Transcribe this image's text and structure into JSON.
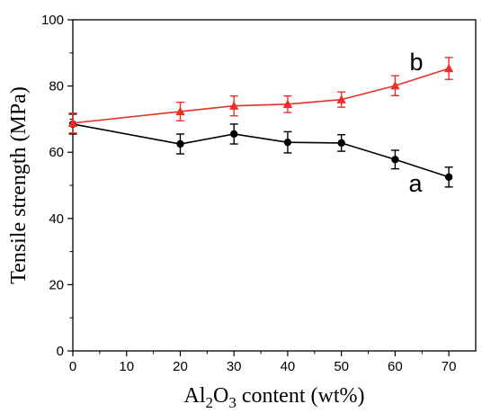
{
  "chart_data": {
    "type": "line",
    "title": "",
    "xlabel": {
      "parts": [
        {
          "text": "Al",
          "sub": false
        },
        {
          "text": "2",
          "sub": true
        },
        {
          "text": "O",
          "sub": false
        },
        {
          "text": "3",
          "sub": true
        },
        {
          "text": " content (wt%)",
          "sub": false
        }
      ]
    },
    "ylabel": "Tensile strength (MPa)",
    "xlim": [
      0,
      75
    ],
    "ylim": [
      0,
      100
    ],
    "xticks": [
      0,
      10,
      20,
      30,
      40,
      50,
      60,
      70
    ],
    "yticks": [
      0,
      20,
      40,
      60,
      80,
      100
    ],
    "x": [
      0,
      20,
      30,
      40,
      50,
      60,
      70
    ],
    "grid": false,
    "series": [
      {
        "name": "a",
        "color": "#000000",
        "marker": "circle",
        "values": [
          68.5,
          62.5,
          65.5,
          63.0,
          62.8,
          57.8,
          52.5
        ],
        "errors": [
          3.0,
          3.0,
          3.0,
          3.2,
          2.5,
          2.8,
          3.0
        ]
      },
      {
        "name": "b",
        "color": "#e8302a",
        "marker": "triangle",
        "values": [
          68.8,
          72.3,
          74.0,
          74.5,
          75.9,
          80.1,
          85.3
        ],
        "errors": [
          3.0,
          2.8,
          3.0,
          2.5,
          2.3,
          3.0,
          3.3
        ]
      }
    ]
  }
}
